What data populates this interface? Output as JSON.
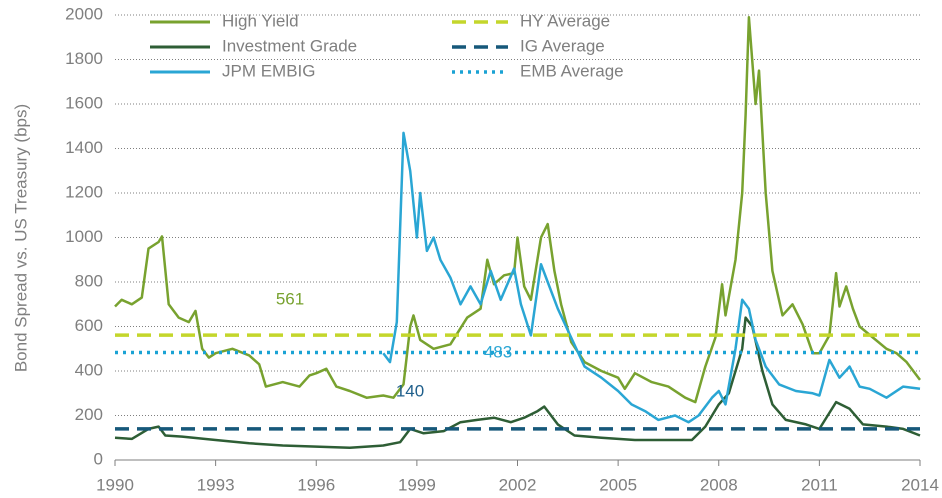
{
  "chart_data": {
    "type": "line",
    "ylabel": "Bond Spread vs. US Treasury (bps)",
    "xlim": [
      1990,
      2014
    ],
    "xticks": [
      1990,
      1993,
      1996,
      1999,
      2002,
      2005,
      2008,
      2011,
      2014
    ],
    "ylim": [
      0,
      2000
    ],
    "yticks": [
      0,
      200,
      400,
      600,
      800,
      1000,
      1200,
      1400,
      1600,
      1800,
      2000
    ],
    "grid": true,
    "series": [
      {
        "name": "High Yield",
        "color": "#78a22f",
        "x": [
          1990.0,
          1990.2,
          1990.5,
          1990.8,
          1991.0,
          1991.3,
          1991.4,
          1991.6,
          1991.9,
          1992.2,
          1992.4,
          1992.6,
          1992.8,
          1993.0,
          1993.5,
          1994.0,
          1994.3,
          1994.5,
          1995.0,
          1995.5,
          1995.8,
          1996.0,
          1996.3,
          1996.6,
          1997.0,
          1997.5,
          1998.0,
          1998.3,
          1998.6,
          1998.8,
          1998.9,
          1999.1,
          1999.5,
          2000.0,
          2000.5,
          2000.9,
          2001.1,
          2001.3,
          2001.6,
          2001.9,
          2002.0,
          2002.2,
          2002.4,
          2002.7,
          2002.9,
          2003.1,
          2003.3,
          2003.6,
          2004.0,
          2004.5,
          2005.0,
          2005.2,
          2005.5,
          2006.0,
          2006.5,
          2007.0,
          2007.3,
          2007.6,
          2007.9,
          2008.1,
          2008.2,
          2008.5,
          2008.7,
          2008.8,
          2008.9,
          2009.1,
          2009.2,
          2009.4,
          2009.6,
          2009.9,
          2010.2,
          2010.5,
          2010.8,
          2011.0,
          2011.3,
          2011.5,
          2011.6,
          2011.8,
          2012.0,
          2012.2,
          2012.6,
          2013.0,
          2013.3,
          2013.6,
          2014.0
        ],
        "values": [
          690,
          720,
          700,
          730,
          950,
          980,
          1005,
          700,
          640,
          620,
          670,
          500,
          460,
          480,
          500,
          470,
          430,
          330,
          350,
          330,
          380,
          390,
          410,
          330,
          310,
          280,
          290,
          280,
          340,
          600,
          650,
          540,
          500,
          520,
          640,
          680,
          900,
          790,
          830,
          840,
          1000,
          780,
          720,
          1000,
          1060,
          850,
          700,
          530,
          440,
          400,
          370,
          320,
          390,
          350,
          330,
          280,
          260,
          420,
          550,
          790,
          650,
          900,
          1200,
          1550,
          1990,
          1600,
          1750,
          1200,
          850,
          650,
          700,
          610,
          480,
          480,
          560,
          840,
          690,
          780,
          680,
          600,
          550,
          500,
          480,
          440,
          360
        ]
      },
      {
        "name": "Investment Grade",
        "color": "#2e5e35",
        "x": [
          1990.0,
          1990.5,
          1991.0,
          1991.3,
          1991.5,
          1992.0,
          1993.0,
          1994.0,
          1995.0,
          1996.0,
          1997.0,
          1998.0,
          1998.5,
          1998.8,
          1999.2,
          1999.8,
          2000.3,
          2000.8,
          2001.3,
          2001.8,
          2002.2,
          2002.6,
          2002.8,
          2003.2,
          2003.7,
          2004.5,
          2005.5,
          2006.5,
          2007.2,
          2007.6,
          2008.0,
          2008.3,
          2008.7,
          2008.8,
          2009.0,
          2009.3,
          2009.6,
          2010.0,
          2010.6,
          2011.0,
          2011.5,
          2011.9,
          2012.3,
          2013.0,
          2013.5,
          2014.0
        ],
        "values": [
          100,
          95,
          140,
          150,
          110,
          105,
          90,
          75,
          65,
          60,
          55,
          65,
          80,
          140,
          120,
          130,
          170,
          180,
          190,
          170,
          190,
          220,
          240,
          160,
          110,
          100,
          90,
          90,
          90,
          150,
          250,
          300,
          500,
          640,
          600,
          400,
          250,
          180,
          160,
          140,
          260,
          230,
          160,
          150,
          140,
          110
        ]
      },
      {
        "name": "JPM EMBIG",
        "color": "#2aa6d4",
        "x": [
          1998.0,
          1998.2,
          1998.4,
          1998.6,
          1998.8,
          1999.0,
          1999.1,
          1999.3,
          1999.5,
          1999.7,
          2000.0,
          2000.3,
          2000.6,
          2000.9,
          2001.2,
          2001.5,
          2001.9,
          2002.1,
          2002.4,
          2002.7,
          2002.9,
          2003.2,
          2003.6,
          2004.0,
          2004.5,
          2005.0,
          2005.4,
          2005.8,
          2006.2,
          2006.7,
          2007.1,
          2007.4,
          2007.8,
          2008.0,
          2008.2,
          2008.5,
          2008.7,
          2008.9,
          2009.1,
          2009.4,
          2009.8,
          2010.3,
          2010.8,
          2011.0,
          2011.3,
          2011.6,
          2011.9,
          2012.2,
          2012.5,
          2013.0,
          2013.5,
          2014.0
        ],
        "values": [
          480,
          440,
          620,
          1470,
          1300,
          1000,
          1200,
          940,
          1000,
          900,
          820,
          700,
          780,
          700,
          850,
          720,
          860,
          700,
          560,
          880,
          800,
          680,
          550,
          420,
          370,
          310,
          250,
          220,
          180,
          200,
          170,
          200,
          280,
          310,
          250,
          500,
          720,
          680,
          540,
          420,
          340,
          310,
          300,
          290,
          450,
          370,
          420,
          330,
          320,
          280,
          330,
          320
        ]
      }
    ],
    "averages": [
      {
        "name": "HY Average",
        "value": 561,
        "color": "#c4d62b",
        "style": "dashed",
        "label_color": "#78a22f"
      },
      {
        "name": "IG Average",
        "value": 140,
        "color": "#16587a",
        "style": "dashed",
        "label_color": "#1f5f8b"
      },
      {
        "name": "EMB Average",
        "value": 483,
        "color": "#1aa2d4",
        "style": "dotted",
        "label_color": "#2aa6d4"
      }
    ]
  }
}
